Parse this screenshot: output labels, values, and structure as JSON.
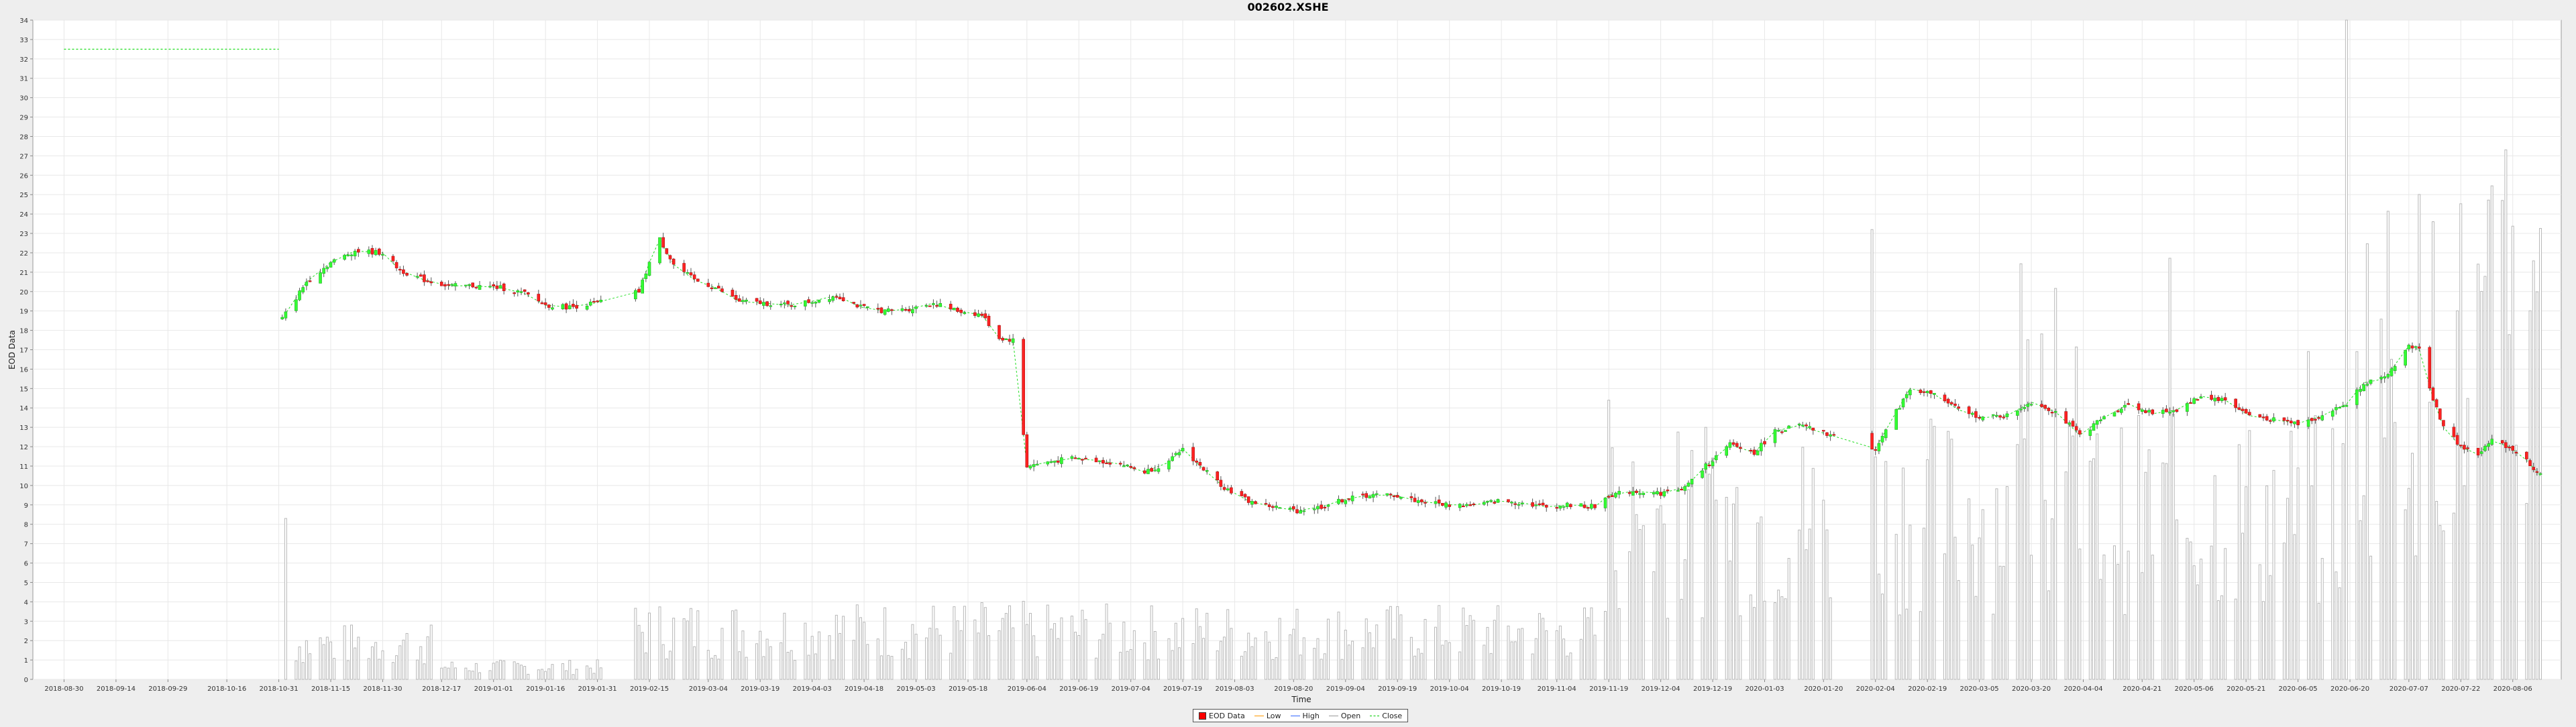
{
  "chart_data": {
    "type": "candlestick",
    "title": "002602.XSHE",
    "xlabel": "Time",
    "ylabel": "EOD Data",
    "ylim": [
      0,
      34
    ],
    "y_ticks": [
      0,
      1,
      2,
      3,
      4,
      5,
      6,
      7,
      8,
      9,
      10,
      11,
      12,
      13,
      14,
      15,
      16,
      17,
      18,
      19,
      20,
      21,
      22,
      23,
      24,
      25,
      26,
      27,
      28,
      29,
      30,
      31,
      32,
      33,
      34
    ],
    "x_ticks": [
      "2018-08-30",
      "2018-09-14",
      "2018-09-29",
      "2018-10-16",
      "2018-10-31",
      "2018-11-15",
      "2018-11-30",
      "2018-12-17",
      "2019-01-01",
      "2019-01-16",
      "2019-01-31",
      "2019-02-15",
      "2019-03-04",
      "2019-03-19",
      "2019-04-03",
      "2019-04-18",
      "2019-05-03",
      "2019-05-18",
      "2019-06-04",
      "2019-06-19",
      "2019-07-04",
      "2019-07-19",
      "2019-08-03",
      "2019-08-20",
      "2019-09-04",
      "2019-09-19",
      "2019-10-04",
      "2019-10-19",
      "2019-11-04",
      "2019-11-19",
      "2019-12-04",
      "2019-12-19",
      "2020-01-03",
      "2020-01-20",
      "2020-02-04",
      "2020-02-19",
      "2020-03-05",
      "2020-03-20",
      "2020-04-04",
      "2020-04-21",
      "2020-05-06",
      "2020-05-21",
      "2020-06-05",
      "2020-06-20",
      "2020-07-07",
      "2020-07-22",
      "2020-08-06"
    ],
    "grid": true,
    "legend_position": "bottom",
    "legend": [
      "EOD Data",
      "Low",
      "High",
      "Open",
      "Close"
    ],
    "close_series": [
      {
        "x": "2018-08-30",
        "y": 32.5
      },
      {
        "x": "2018-10-31",
        "y": 32.5
      },
      {
        "x": "2018-11-01",
        "y": 18.6
      },
      {
        "x": "2018-11-08",
        "y": 20.5
      },
      {
        "x": "2018-11-15",
        "y": 21.5
      },
      {
        "x": "2018-11-22",
        "y": 22.1
      },
      {
        "x": "2018-11-30",
        "y": 22.0
      },
      {
        "x": "2018-12-05",
        "y": 21.1
      },
      {
        "x": "2018-12-12",
        "y": 20.6
      },
      {
        "x": "2018-12-19",
        "y": 20.3
      },
      {
        "x": "2018-12-26",
        "y": 20.3
      },
      {
        "x": "2019-01-03",
        "y": 20.2
      },
      {
        "x": "2019-01-10",
        "y": 19.9
      },
      {
        "x": "2019-01-16",
        "y": 19.3
      },
      {
        "x": "2019-01-23",
        "y": 19.2
      },
      {
        "x": "2019-01-30",
        "y": 19.4
      },
      {
        "x": "2019-02-12",
        "y": 20.0
      },
      {
        "x": "2019-02-15",
        "y": 21.5
      },
      {
        "x": "2019-02-18",
        "y": 22.7
      },
      {
        "x": "2019-02-22",
        "y": 21.4
      },
      {
        "x": "2019-02-28",
        "y": 20.6
      },
      {
        "x": "2019-03-06",
        "y": 20.2
      },
      {
        "x": "2019-03-13",
        "y": 19.5
      },
      {
        "x": "2019-03-20",
        "y": 19.4
      },
      {
        "x": "2019-03-27",
        "y": 19.3
      },
      {
        "x": "2019-04-03",
        "y": 19.5
      },
      {
        "x": "2019-04-10",
        "y": 19.8
      },
      {
        "x": "2019-04-17",
        "y": 19.2
      },
      {
        "x": "2019-04-24",
        "y": 19.0
      },
      {
        "x": "2019-05-01",
        "y": 19.1
      },
      {
        "x": "2019-05-08",
        "y": 19.4
      },
      {
        "x": "2019-05-15",
        "y": 19.0
      },
      {
        "x": "2019-05-22",
        "y": 18.8
      },
      {
        "x": "2019-05-27",
        "y": 17.6
      },
      {
        "x": "2019-05-31",
        "y": 17.5
      },
      {
        "x": "2019-06-04",
        "y": 11.0
      },
      {
        "x": "2019-06-10",
        "y": 11.2
      },
      {
        "x": "2019-06-17",
        "y": 11.4
      },
      {
        "x": "2019-06-24",
        "y": 11.3
      },
      {
        "x": "2019-07-01",
        "y": 11.1
      },
      {
        "x": "2019-07-08",
        "y": 10.7
      },
      {
        "x": "2019-07-15",
        "y": 11.2
      },
      {
        "x": "2019-07-19",
        "y": 11.9
      },
      {
        "x": "2019-07-24",
        "y": 11.0
      },
      {
        "x": "2019-07-31",
        "y": 9.9
      },
      {
        "x": "2019-08-07",
        "y": 9.2
      },
      {
        "x": "2019-08-14",
        "y": 8.9
      },
      {
        "x": "2019-08-21",
        "y": 8.7
      },
      {
        "x": "2019-08-28",
        "y": 8.9
      },
      {
        "x": "2019-09-04",
        "y": 9.3
      },
      {
        "x": "2019-09-11",
        "y": 9.5
      },
      {
        "x": "2019-09-18",
        "y": 9.5
      },
      {
        "x": "2019-09-25",
        "y": 9.2
      },
      {
        "x": "2019-10-04",
        "y": 9.0
      },
      {
        "x": "2019-10-11",
        "y": 9.0
      },
      {
        "x": "2019-10-18",
        "y": 9.2
      },
      {
        "x": "2019-10-25",
        "y": 9.1
      },
      {
        "x": "2019-11-01",
        "y": 8.9
      },
      {
        "x": "2019-11-08",
        "y": 9.0
      },
      {
        "x": "2019-11-15",
        "y": 8.9
      },
      {
        "x": "2019-11-19",
        "y": 9.5
      },
      {
        "x": "2019-11-26",
        "y": 9.7
      },
      {
        "x": "2019-12-04",
        "y": 9.6
      },
      {
        "x": "2019-12-11",
        "y": 9.9
      },
      {
        "x": "2019-12-17",
        "y": 11.0
      },
      {
        "x": "2019-12-24",
        "y": 12.1
      },
      {
        "x": "2019-12-31",
        "y": 11.7
      },
      {
        "x": "2020-01-06",
        "y": 12.8
      },
      {
        "x": "2020-01-13",
        "y": 13.1
      },
      {
        "x": "2020-01-20",
        "y": 12.7
      },
      {
        "x": "2020-02-04",
        "y": 11.9
      },
      {
        "x": "2020-02-10",
        "y": 13.8
      },
      {
        "x": "2020-02-14",
        "y": 15.0
      },
      {
        "x": "2020-02-21",
        "y": 14.7
      },
      {
        "x": "2020-02-28",
        "y": 13.9
      },
      {
        "x": "2020-03-06",
        "y": 13.5
      },
      {
        "x": "2020-03-13",
        "y": 13.6
      },
      {
        "x": "2020-03-20",
        "y": 14.3
      },
      {
        "x": "2020-03-27",
        "y": 13.8
      },
      {
        "x": "2020-04-03",
        "y": 12.6
      },
      {
        "x": "2020-04-10",
        "y": 13.5
      },
      {
        "x": "2020-04-17",
        "y": 14.2
      },
      {
        "x": "2020-04-24",
        "y": 13.7
      },
      {
        "x": "2020-05-01",
        "y": 13.9
      },
      {
        "x": "2020-05-08",
        "y": 14.6
      },
      {
        "x": "2020-05-15",
        "y": 14.4
      },
      {
        "x": "2020-05-22",
        "y": 13.6
      },
      {
        "x": "2020-05-29",
        "y": 13.4
      },
      {
        "x": "2020-06-05",
        "y": 13.2
      },
      {
        "x": "2020-06-12",
        "y": 13.6
      },
      {
        "x": "2020-06-19",
        "y": 14.2
      },
      {
        "x": "2020-06-24",
        "y": 15.3
      },
      {
        "x": "2020-06-30",
        "y": 15.5
      },
      {
        "x": "2020-07-07",
        "y": 17.2
      },
      {
        "x": "2020-07-10",
        "y": 17.0
      },
      {
        "x": "2020-07-14",
        "y": 14.5
      },
      {
        "x": "2020-07-17",
        "y": 13.0
      },
      {
        "x": "2020-07-22",
        "y": 12.0
      },
      {
        "x": "2020-07-27",
        "y": 11.6
      },
      {
        "x": "2020-07-31",
        "y": 12.3
      },
      {
        "x": "2020-08-05",
        "y": 12.0
      },
      {
        "x": "2020-08-10",
        "y": 11.3
      },
      {
        "x": "2020-08-14",
        "y": 10.5
      }
    ],
    "volume_bars_approx": [
      {
        "from": "2018-11-02",
        "to": "2018-12-15",
        "level": 2.0,
        "peak": 8.3
      },
      {
        "from": "2018-12-16",
        "to": "2019-02-10",
        "level": 0.7
      },
      {
        "from": "2019-02-11",
        "to": "2019-06-03",
        "level": 2.8
      },
      {
        "from": "2019-06-04",
        "to": "2019-11-18",
        "level": 2.7
      },
      {
        "from": "2019-11-19",
        "to": "2020-01-22",
        "level": 9.0,
        "peak": 14.4
      },
      {
        "from": "2020-02-03",
        "to": "2020-06-18",
        "level": 9.5,
        "peak": 23.2
      },
      {
        "from": "2020-06-19",
        "to": "2020-08-18",
        "level": 18.0,
        "peak": 34.0
      }
    ]
  }
}
